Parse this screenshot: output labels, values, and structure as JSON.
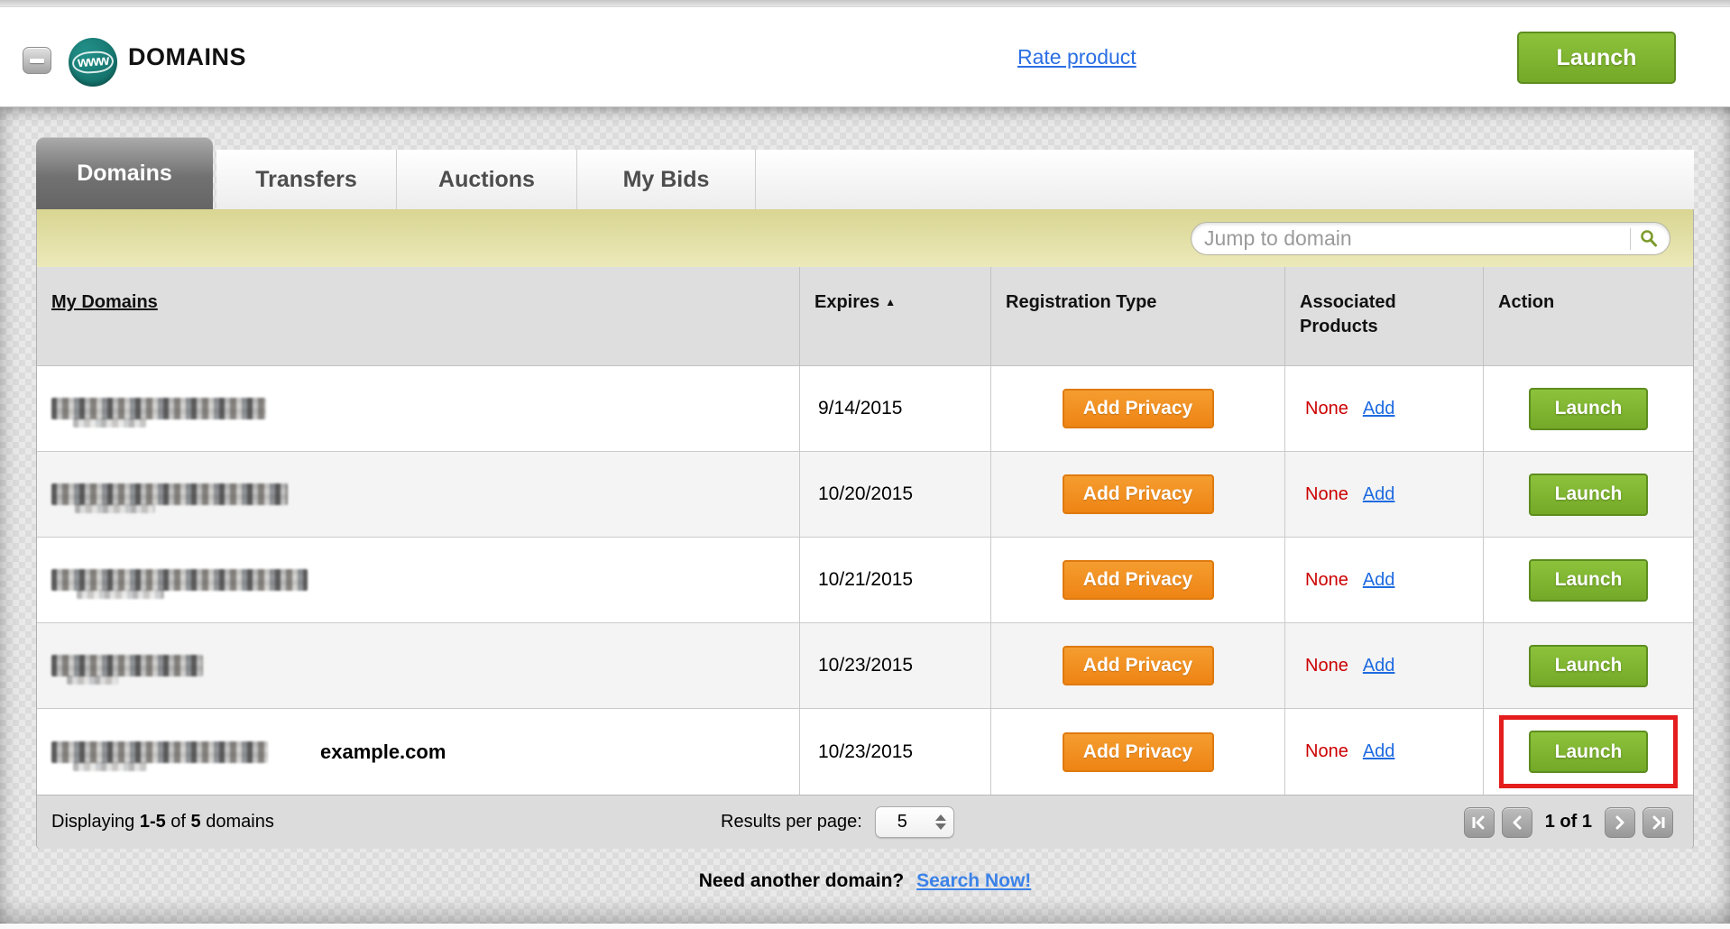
{
  "header": {
    "app_icon_text": "www",
    "title": "DOMAINS",
    "rate_link": "Rate product",
    "launch_button": "Launch"
  },
  "tabs": [
    {
      "label": "Domains",
      "active": true
    },
    {
      "label": "Transfers",
      "active": false
    },
    {
      "label": "Auctions",
      "active": false
    },
    {
      "label": "My Bids",
      "active": false
    }
  ],
  "toolbar": {
    "search_placeholder": "Jump to domain"
  },
  "table": {
    "columns": {
      "domain": "My Domains",
      "expires": "Expires",
      "registration": "Registration Type",
      "associated_line1": "Associated",
      "associated_line2": "Products",
      "action": "Action"
    },
    "sort": {
      "column": "Expires",
      "direction": "asc",
      "arrow": "▲"
    },
    "rows": [
      {
        "domain_redacted": true,
        "redacted_width": 238,
        "annotation": "",
        "expires": "9/14/2015",
        "privacy_button": "Add Privacy",
        "associated_value": "None",
        "associated_link": "Add",
        "launch_button": "Launch",
        "highlighted": false
      },
      {
        "domain_redacted": true,
        "redacted_width": 262,
        "annotation": "",
        "expires": "10/20/2015",
        "privacy_button": "Add Privacy",
        "associated_value": "None",
        "associated_link": "Add",
        "launch_button": "Launch",
        "highlighted": false
      },
      {
        "domain_redacted": true,
        "redacted_width": 284,
        "annotation": "",
        "expires": "10/21/2015",
        "privacy_button": "Add Privacy",
        "associated_value": "None",
        "associated_link": "Add",
        "launch_button": "Launch",
        "highlighted": false
      },
      {
        "domain_redacted": true,
        "redacted_width": 168,
        "annotation": "",
        "expires": "10/23/2015",
        "privacy_button": "Add Privacy",
        "associated_value": "None",
        "associated_link": "Add",
        "launch_button": "Launch",
        "highlighted": false
      },
      {
        "domain_redacted": true,
        "redacted_width": 240,
        "annotation": "example.com",
        "expires": "10/23/2015",
        "privacy_button": "Add Privacy",
        "associated_value": "None",
        "associated_link": "Add",
        "launch_button": "Launch",
        "highlighted": true
      }
    ]
  },
  "footer": {
    "displaying": {
      "prefix": "Displaying",
      "range": "1-5",
      "of": "of",
      "total": "5",
      "suffix": "domains"
    },
    "results_per_page_label": "Results per page:",
    "results_per_page_value": "5",
    "page_status": "1 of 1"
  },
  "bottom": {
    "prompt": "Need another domain?",
    "link": "Search Now!"
  },
  "icons": {
    "collapse": "minus-icon",
    "search": "magnifier-icon",
    "pagination": [
      "first-page-icon",
      "previous-page-icon",
      "next-page-icon",
      "last-page-icon"
    ],
    "sort": "triangle-up-icon",
    "select_stepper": "up-down-stepper-icon"
  },
  "colors": {
    "launch_green": "#7fb42f",
    "launch_green_border": "#5d8d1f",
    "privacy_orange": "#f08c1e",
    "privacy_orange_border": "#df7a0e",
    "highlight_red": "#e41d1d",
    "none_red": "#cc0000",
    "link_blue": "#2b6fe4",
    "search_bar_yellow": "#e2dfa2",
    "active_tab_gray": "#6d6d6d",
    "header_gray": "#dedede"
  }
}
